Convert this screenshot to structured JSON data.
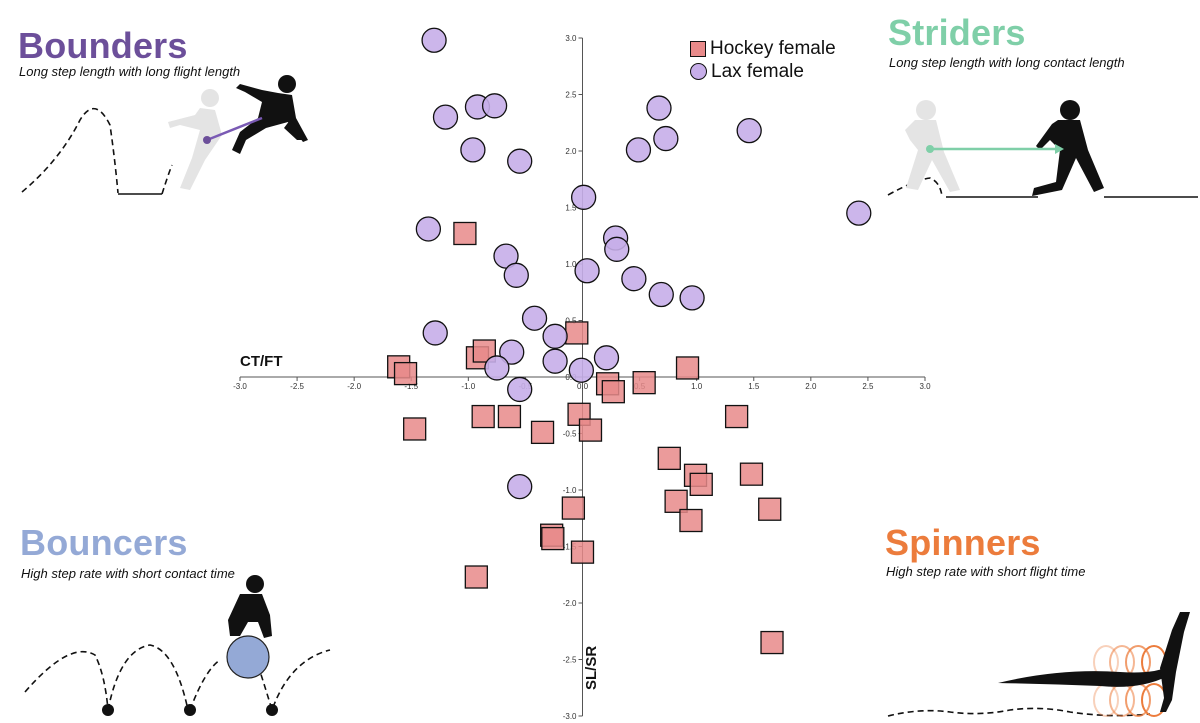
{
  "quadrants": {
    "bounders": {
      "title": "Bounders",
      "subtitle": "Long step length with long flight length",
      "color": "#6c4f9a"
    },
    "striders": {
      "title": "Striders",
      "subtitle": "Long step length with long contact length",
      "color": "#7fcfa8"
    },
    "bouncers": {
      "title": "Bouncers",
      "subtitle": "High step rate with short contact time",
      "color": "#94a9d6"
    },
    "spinners": {
      "title": "Spinners",
      "subtitle": "High step rate with short flight time",
      "color": "#ec7c3c"
    }
  },
  "chart_data": {
    "type": "scatter",
    "xlabel": "CT/FT",
    "ylabel": "SL/SR",
    "xlim": [
      -3.0,
      3.0
    ],
    "ylim": [
      -3.0,
      3.0
    ],
    "x_ticks": [
      "-3.0",
      "-2.5",
      "-2.0",
      "-1.5",
      "-1.0",
      "-0.5",
      "0.0",
      "0.5",
      "1.0",
      "1.5",
      "2.0",
      "2.5",
      "3.0"
    ],
    "y_ticks": [
      "3.0",
      "2.5",
      "2.0",
      "1.5",
      "1.0",
      "0.5",
      "0.0",
      "-0.5",
      "-1.0",
      "-1.5",
      "-2.0",
      "-2.5",
      "-3.0"
    ],
    "grid": false,
    "legend_position": "top-center-right",
    "series": [
      {
        "name": "Hockey female",
        "marker": "square",
        "color": "#e88a8a",
        "points": [
          [
            -1.61,
            0.09
          ],
          [
            -1.55,
            0.03
          ],
          [
            -1.47,
            -0.46
          ],
          [
            -1.03,
            1.27
          ],
          [
            -0.92,
            0.17
          ],
          [
            -0.86,
            0.23
          ],
          [
            -0.87,
            -0.35
          ],
          [
            -0.64,
            -0.35
          ],
          [
            -0.35,
            -0.49
          ],
          [
            -0.05,
            0.39
          ],
          [
            -0.03,
            -0.33
          ],
          [
            -0.08,
            -1.16
          ],
          [
            -0.27,
            -1.4
          ],
          [
            -0.26,
            -1.43
          ],
          [
            -0.93,
            -1.77
          ],
          [
            0.07,
            -0.47
          ],
          [
            0.22,
            -0.06
          ],
          [
            0.27,
            -0.13
          ],
          [
            0.54,
            -0.05
          ],
          [
            0.92,
            0.08
          ],
          [
            0.0,
            -1.55
          ],
          [
            0.76,
            -0.72
          ],
          [
            0.82,
            -1.1
          ],
          [
            0.95,
            -1.27
          ],
          [
            0.99,
            -0.87
          ],
          [
            1.04,
            -0.95
          ],
          [
            1.35,
            -0.35
          ],
          [
            1.48,
            -0.86
          ],
          [
            1.64,
            -1.17
          ],
          [
            1.66,
            -2.35
          ]
        ]
      },
      {
        "name": "Lax female",
        "marker": "circle",
        "color": "#c7aee9",
        "points": [
          [
            -1.3,
            2.98
          ],
          [
            -1.2,
            2.3
          ],
          [
            -0.92,
            2.39
          ],
          [
            -0.77,
            2.4
          ],
          [
            -0.96,
            2.01
          ],
          [
            -0.55,
            1.91
          ],
          [
            -1.35,
            1.31
          ],
          [
            -0.67,
            1.07
          ],
          [
            -0.58,
            0.9
          ],
          [
            -1.29,
            0.39
          ],
          [
            -0.42,
            0.52
          ],
          [
            -0.62,
            0.22
          ],
          [
            -0.75,
            0.08
          ],
          [
            -0.55,
            -0.11
          ],
          [
            -0.24,
            0.36
          ],
          [
            -0.24,
            0.14
          ],
          [
            -0.01,
            0.06
          ],
          [
            0.21,
            0.17
          ],
          [
            0.01,
            1.59
          ],
          [
            0.04,
            0.94
          ],
          [
            0.29,
            1.23
          ],
          [
            0.3,
            1.13
          ],
          [
            0.45,
            0.87
          ],
          [
            0.49,
            2.01
          ],
          [
            0.67,
            2.38
          ],
          [
            0.73,
            2.11
          ],
          [
            0.69,
            0.73
          ],
          [
            0.96,
            0.7
          ],
          [
            1.46,
            2.18
          ],
          [
            2.42,
            1.45
          ],
          [
            -0.55,
            -0.97
          ]
        ]
      }
    ]
  }
}
